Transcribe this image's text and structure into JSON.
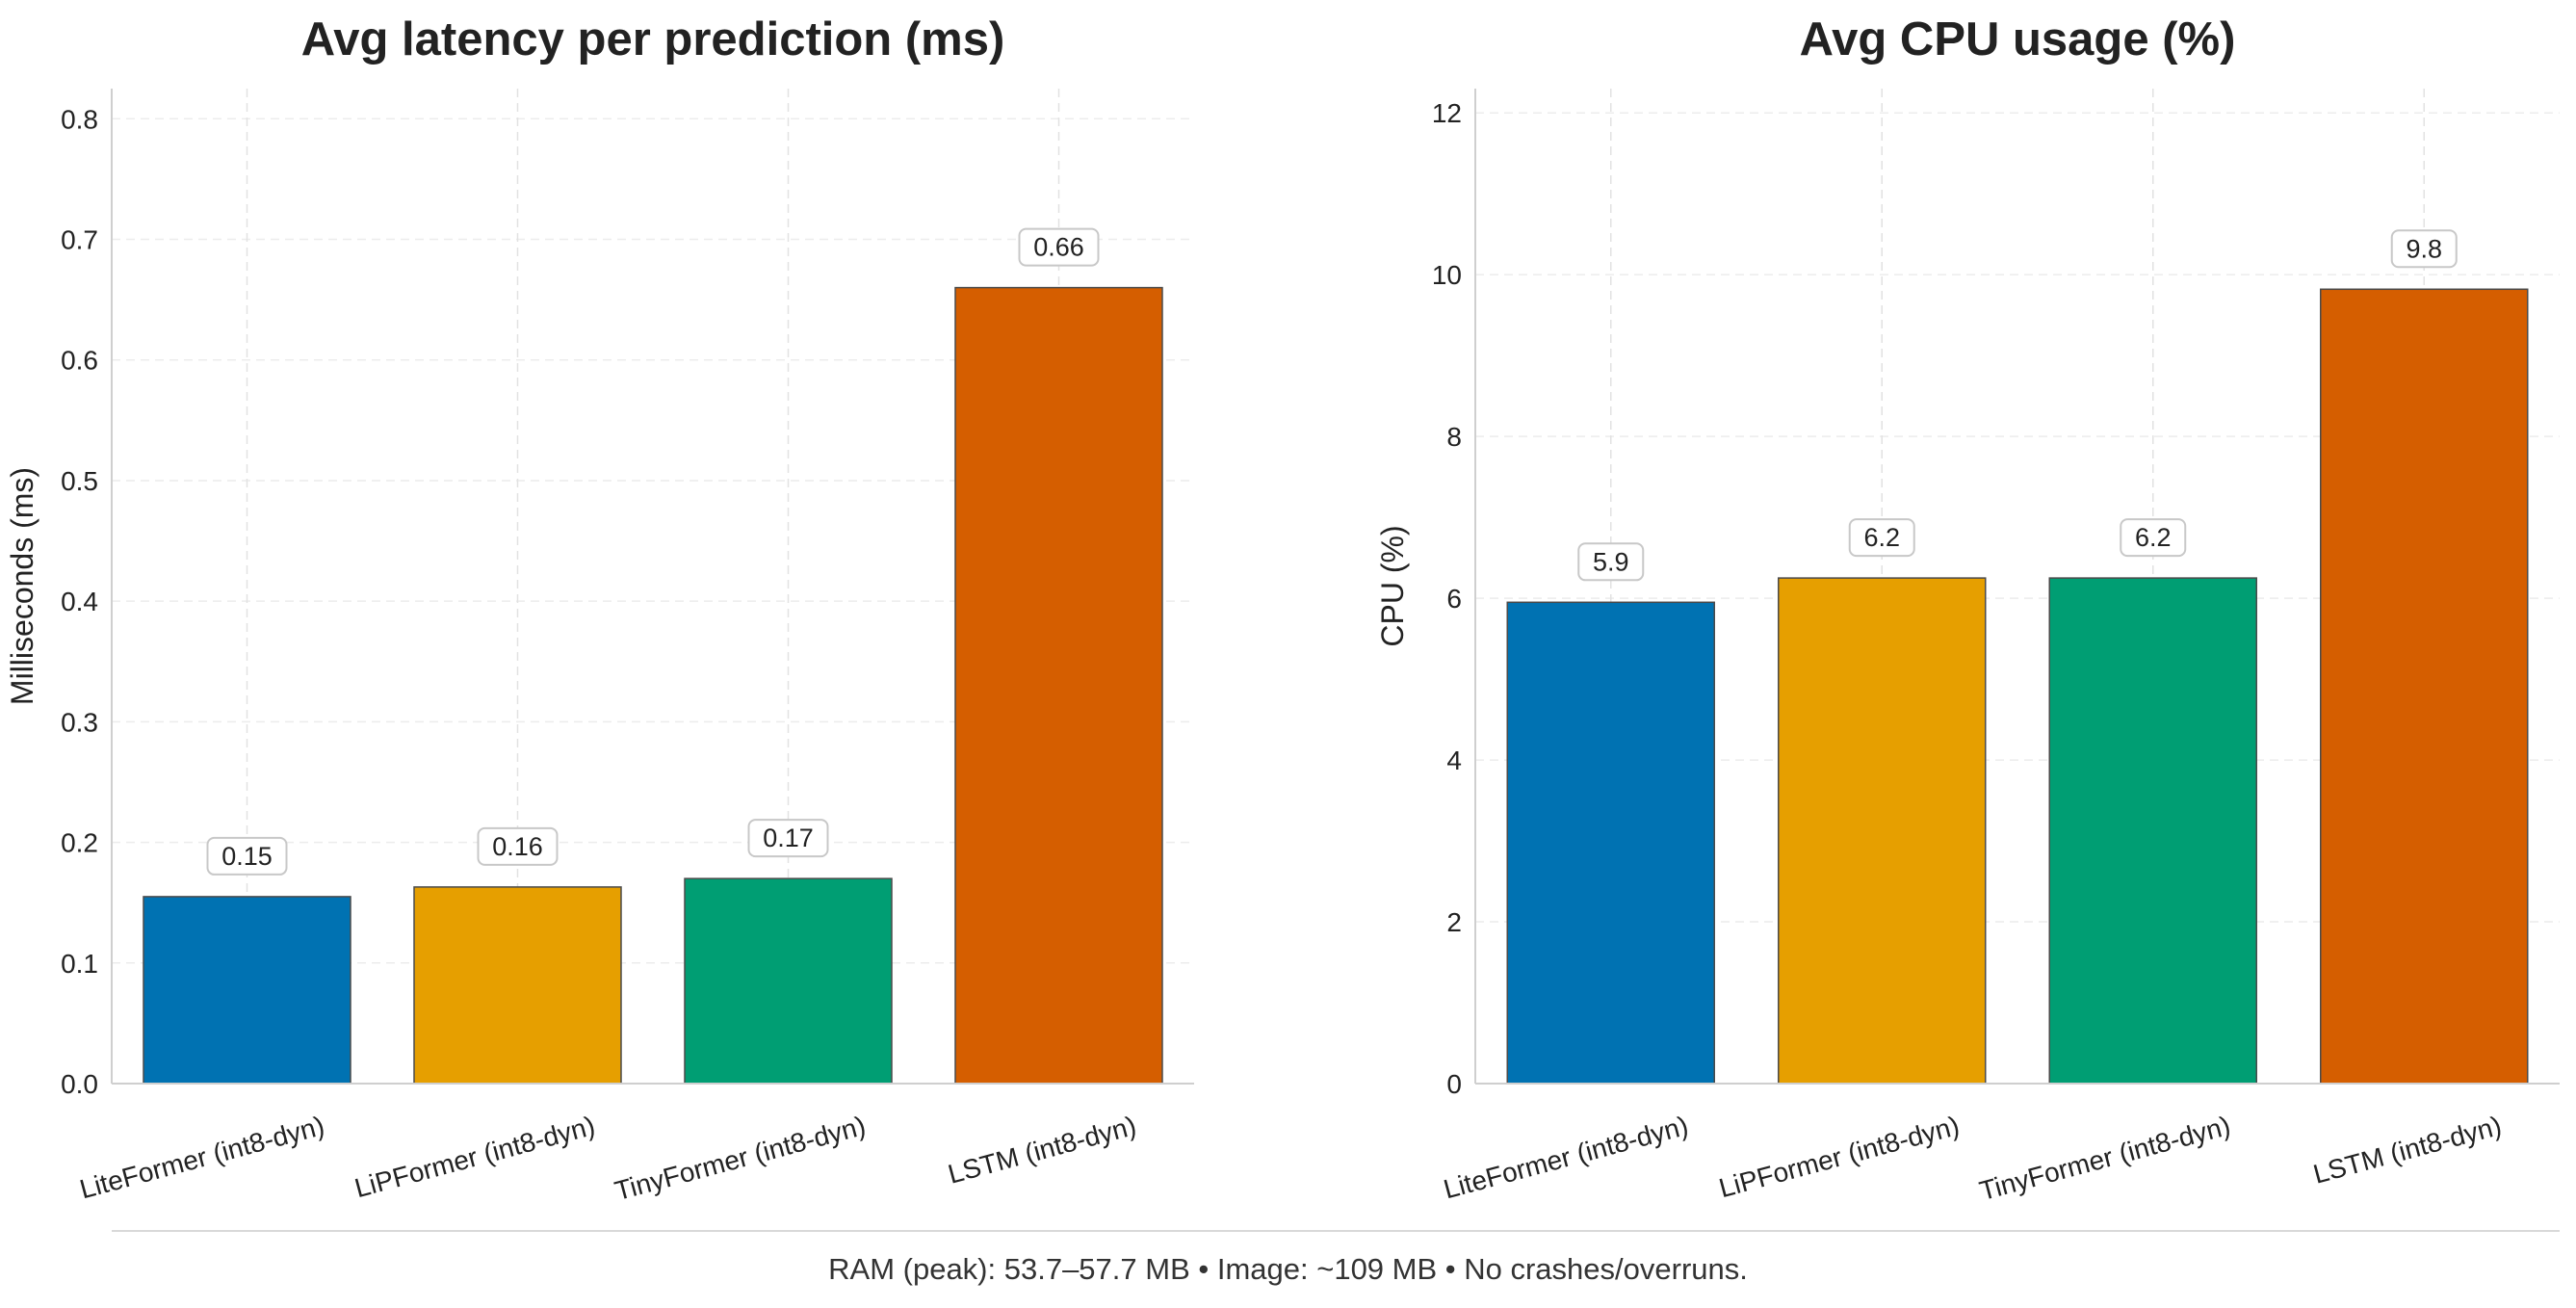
{
  "chart_data": [
    {
      "type": "bar",
      "title": "Avg latency per prediction (ms)",
      "xlabel": "",
      "ylabel": "Milliseconds (ms)",
      "categories": [
        "LiteFormer (int8-dyn)",
        "LiPFormer (int8-dyn)",
        "TinyFormer (int8-dyn)",
        "LSTM (int8-dyn)"
      ],
      "values": [
        0.155,
        0.163,
        0.17,
        0.66
      ],
      "value_labels": [
        "0.15",
        "0.16",
        "0.17",
        "0.66"
      ],
      "ylim": [
        0,
        0.825
      ],
      "yticks": [
        0.0,
        0.1,
        0.2,
        0.3,
        0.4,
        0.5,
        0.6,
        0.7,
        0.8
      ],
      "ytick_labels": [
        "0.0",
        "0.1",
        "0.2",
        "0.3",
        "0.4",
        "0.5",
        "0.6",
        "0.7",
        "0.8"
      ],
      "colors": [
        "#0072b2",
        "#e69f00",
        "#009e73",
        "#d55e00"
      ],
      "grid": true
    },
    {
      "type": "bar",
      "title": "Avg CPU usage (%)",
      "xlabel": "",
      "ylabel": "CPU (%)",
      "categories": [
        "LiteFormer (int8-dyn)",
        "LiPFormer (int8-dyn)",
        "TinyFormer (int8-dyn)",
        "LSTM (int8-dyn)"
      ],
      "values": [
        5.95,
        6.25,
        6.25,
        9.82
      ],
      "value_labels": [
        "5.9",
        "6.2",
        "6.2",
        "9.8"
      ],
      "ylim": [
        0,
        12.3
      ],
      "yticks": [
        0,
        2,
        4,
        6,
        8,
        10,
        12
      ],
      "ytick_labels": [
        "0",
        "2",
        "4",
        "6",
        "8",
        "10",
        "12"
      ],
      "colors": [
        "#0072b2",
        "#e69f00",
        "#009e73",
        "#d55e00"
      ],
      "grid": true
    }
  ],
  "footer": {
    "note": "RAM (peak): 53.7–57.7 MB • Image: ~109 MB • No crashes/overruns."
  }
}
